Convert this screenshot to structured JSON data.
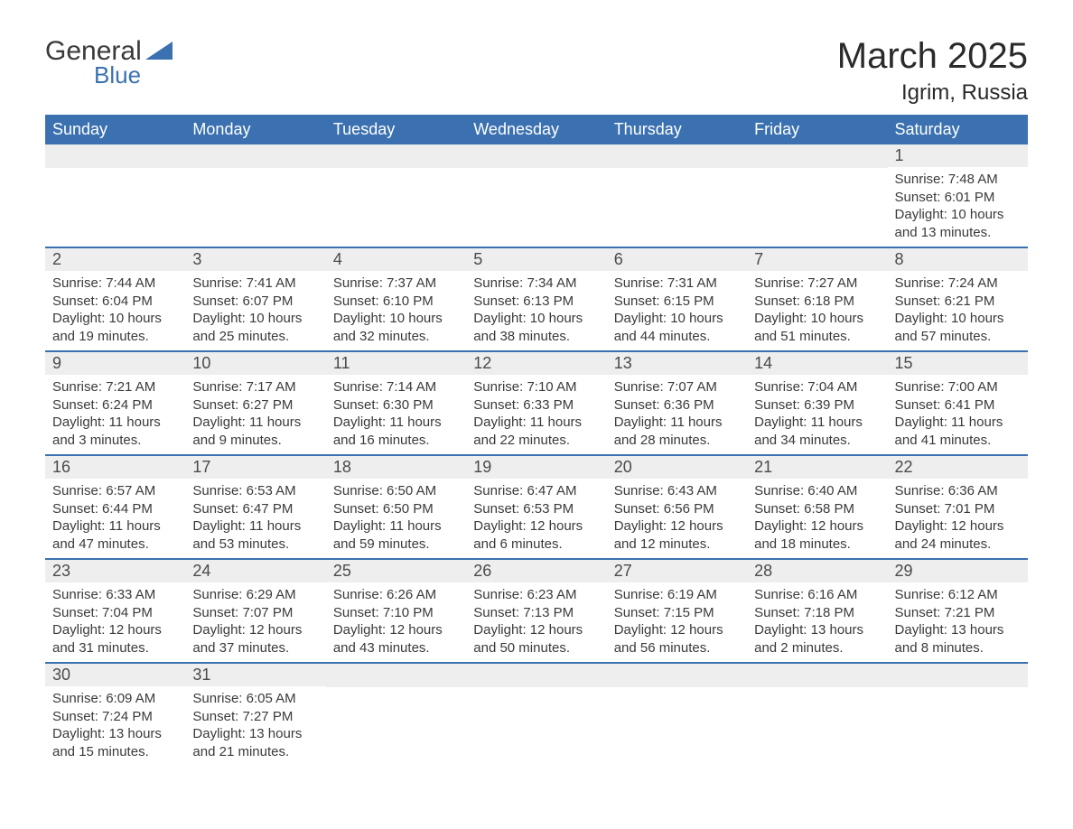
{
  "logo": {
    "text1": "General",
    "text2": "Blue"
  },
  "title": "March 2025",
  "location": "Igrim, Russia",
  "colors": {
    "header_bg": "#3b71b0",
    "header_text": "#ffffff",
    "daynum_bg": "#eeeeee",
    "row_border": "#3b71b0",
    "text": "#3a3a3a"
  },
  "weekdays": [
    "Sunday",
    "Monday",
    "Tuesday",
    "Wednesday",
    "Thursday",
    "Friday",
    "Saturday"
  ],
  "weeks": [
    [
      null,
      null,
      null,
      null,
      null,
      null,
      {
        "n": "1",
        "sunrise": "Sunrise: 7:48 AM",
        "sunset": "Sunset: 6:01 PM",
        "daylight": "Daylight: 10 hours and 13 minutes."
      }
    ],
    [
      {
        "n": "2",
        "sunrise": "Sunrise: 7:44 AM",
        "sunset": "Sunset: 6:04 PM",
        "daylight": "Daylight: 10 hours and 19 minutes."
      },
      {
        "n": "3",
        "sunrise": "Sunrise: 7:41 AM",
        "sunset": "Sunset: 6:07 PM",
        "daylight": "Daylight: 10 hours and 25 minutes."
      },
      {
        "n": "4",
        "sunrise": "Sunrise: 7:37 AM",
        "sunset": "Sunset: 6:10 PM",
        "daylight": "Daylight: 10 hours and 32 minutes."
      },
      {
        "n": "5",
        "sunrise": "Sunrise: 7:34 AM",
        "sunset": "Sunset: 6:13 PM",
        "daylight": "Daylight: 10 hours and 38 minutes."
      },
      {
        "n": "6",
        "sunrise": "Sunrise: 7:31 AM",
        "sunset": "Sunset: 6:15 PM",
        "daylight": "Daylight: 10 hours and 44 minutes."
      },
      {
        "n": "7",
        "sunrise": "Sunrise: 7:27 AM",
        "sunset": "Sunset: 6:18 PM",
        "daylight": "Daylight: 10 hours and 51 minutes."
      },
      {
        "n": "8",
        "sunrise": "Sunrise: 7:24 AM",
        "sunset": "Sunset: 6:21 PM",
        "daylight": "Daylight: 10 hours and 57 minutes."
      }
    ],
    [
      {
        "n": "9",
        "sunrise": "Sunrise: 7:21 AM",
        "sunset": "Sunset: 6:24 PM",
        "daylight": "Daylight: 11 hours and 3 minutes."
      },
      {
        "n": "10",
        "sunrise": "Sunrise: 7:17 AM",
        "sunset": "Sunset: 6:27 PM",
        "daylight": "Daylight: 11 hours and 9 minutes."
      },
      {
        "n": "11",
        "sunrise": "Sunrise: 7:14 AM",
        "sunset": "Sunset: 6:30 PM",
        "daylight": "Daylight: 11 hours and 16 minutes."
      },
      {
        "n": "12",
        "sunrise": "Sunrise: 7:10 AM",
        "sunset": "Sunset: 6:33 PM",
        "daylight": "Daylight: 11 hours and 22 minutes."
      },
      {
        "n": "13",
        "sunrise": "Sunrise: 7:07 AM",
        "sunset": "Sunset: 6:36 PM",
        "daylight": "Daylight: 11 hours and 28 minutes."
      },
      {
        "n": "14",
        "sunrise": "Sunrise: 7:04 AM",
        "sunset": "Sunset: 6:39 PM",
        "daylight": "Daylight: 11 hours and 34 minutes."
      },
      {
        "n": "15",
        "sunrise": "Sunrise: 7:00 AM",
        "sunset": "Sunset: 6:41 PM",
        "daylight": "Daylight: 11 hours and 41 minutes."
      }
    ],
    [
      {
        "n": "16",
        "sunrise": "Sunrise: 6:57 AM",
        "sunset": "Sunset: 6:44 PM",
        "daylight": "Daylight: 11 hours and 47 minutes."
      },
      {
        "n": "17",
        "sunrise": "Sunrise: 6:53 AM",
        "sunset": "Sunset: 6:47 PM",
        "daylight": "Daylight: 11 hours and 53 minutes."
      },
      {
        "n": "18",
        "sunrise": "Sunrise: 6:50 AM",
        "sunset": "Sunset: 6:50 PM",
        "daylight": "Daylight: 11 hours and 59 minutes."
      },
      {
        "n": "19",
        "sunrise": "Sunrise: 6:47 AM",
        "sunset": "Sunset: 6:53 PM",
        "daylight": "Daylight: 12 hours and 6 minutes."
      },
      {
        "n": "20",
        "sunrise": "Sunrise: 6:43 AM",
        "sunset": "Sunset: 6:56 PM",
        "daylight": "Daylight: 12 hours and 12 minutes."
      },
      {
        "n": "21",
        "sunrise": "Sunrise: 6:40 AM",
        "sunset": "Sunset: 6:58 PM",
        "daylight": "Daylight: 12 hours and 18 minutes."
      },
      {
        "n": "22",
        "sunrise": "Sunrise: 6:36 AM",
        "sunset": "Sunset: 7:01 PM",
        "daylight": "Daylight: 12 hours and 24 minutes."
      }
    ],
    [
      {
        "n": "23",
        "sunrise": "Sunrise: 6:33 AM",
        "sunset": "Sunset: 7:04 PM",
        "daylight": "Daylight: 12 hours and 31 minutes."
      },
      {
        "n": "24",
        "sunrise": "Sunrise: 6:29 AM",
        "sunset": "Sunset: 7:07 PM",
        "daylight": "Daylight: 12 hours and 37 minutes."
      },
      {
        "n": "25",
        "sunrise": "Sunrise: 6:26 AM",
        "sunset": "Sunset: 7:10 PM",
        "daylight": "Daylight: 12 hours and 43 minutes."
      },
      {
        "n": "26",
        "sunrise": "Sunrise: 6:23 AM",
        "sunset": "Sunset: 7:13 PM",
        "daylight": "Daylight: 12 hours and 50 minutes."
      },
      {
        "n": "27",
        "sunrise": "Sunrise: 6:19 AM",
        "sunset": "Sunset: 7:15 PM",
        "daylight": "Daylight: 12 hours and 56 minutes."
      },
      {
        "n": "28",
        "sunrise": "Sunrise: 6:16 AM",
        "sunset": "Sunset: 7:18 PM",
        "daylight": "Daylight: 13 hours and 2 minutes."
      },
      {
        "n": "29",
        "sunrise": "Sunrise: 6:12 AM",
        "sunset": "Sunset: 7:21 PM",
        "daylight": "Daylight: 13 hours and 8 minutes."
      }
    ],
    [
      {
        "n": "30",
        "sunrise": "Sunrise: 6:09 AM",
        "sunset": "Sunset: 7:24 PM",
        "daylight": "Daylight: 13 hours and 15 minutes."
      },
      {
        "n": "31",
        "sunrise": "Sunrise: 6:05 AM",
        "sunset": "Sunset: 7:27 PM",
        "daylight": "Daylight: 13 hours and 21 minutes."
      },
      null,
      null,
      null,
      null,
      null
    ]
  ]
}
